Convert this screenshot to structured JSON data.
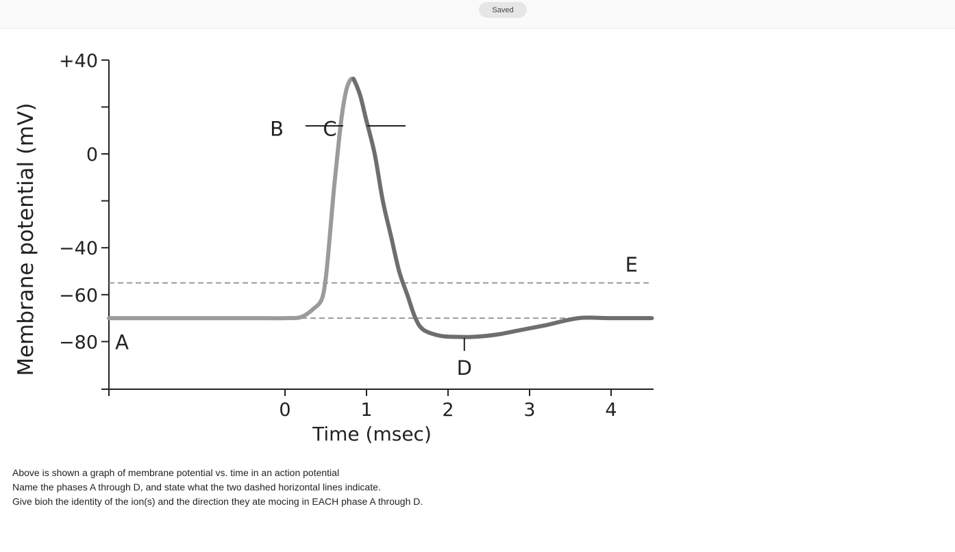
{
  "header": {
    "status": "Saved"
  },
  "chart_data": {
    "type": "line",
    "title": "",
    "xlabel": "Time (msec)",
    "ylabel": "Membrane potential (mV)",
    "xlim": [
      -2.16,
      4.5
    ],
    "ylim": [
      -99.6,
      40
    ],
    "x_tick_labels": [
      "0",
      "1",
      "2",
      "3",
      "4"
    ],
    "x_ticks": [
      0,
      1,
      2,
      3,
      4
    ],
    "y_tick_labels": [
      "+40",
      "0",
      "−40",
      "−60",
      "−80"
    ],
    "y_ticks": [
      40,
      0,
      -40,
      -60,
      -80
    ],
    "y_minor_ticks": [
      20,
      -20
    ],
    "grid": false,
    "series": [
      {
        "x": [
          -2.16,
          -1,
          -0.5,
          0,
          0.2,
          0.35,
          0.45,
          0.5,
          0.55,
          0.6,
          0.65,
          0.7,
          0.75,
          0.8,
          0.84,
          0.88,
          0.93,
          1.0,
          1.1,
          1.2,
          1.3,
          1.4,
          1.5,
          1.6,
          1.7,
          1.9,
          2.1,
          2.3,
          2.6,
          2.9,
          3.2,
          3.6,
          4.0,
          4.5
        ],
        "y": [
          -70,
          -70,
          -70,
          -70,
          -69.5,
          -66,
          -62,
          -53,
          -35,
          -15,
          2,
          17,
          27,
          31.5,
          32,
          29,
          24,
          14,
          0,
          -20,
          -35,
          -50,
          -60,
          -70,
          -75,
          -77.5,
          -78,
          -78,
          -77,
          -75,
          -73,
          -70,
          -70,
          -70
        ]
      }
    ],
    "reference_lines": [
      {
        "y": -55,
        "style": "dashed"
      },
      {
        "y": -70,
        "style": "dashed"
      }
    ],
    "annotations": [
      {
        "text": "A",
        "x": -2.0,
        "y": -80
      },
      {
        "text": "B",
        "x": -0.1,
        "y": 11
      },
      {
        "text": "C",
        "x": 0.55,
        "y": 11
      },
      {
        "text": "D",
        "x": 2.2,
        "y": -91
      },
      {
        "text": "E",
        "x": 4.25,
        "y": -47
      }
    ],
    "colors": {
      "rise": "#9b9b9b",
      "fall": "#6e6e6e",
      "dashed": "#999999",
      "axis": "#222222"
    }
  },
  "question": {
    "lines": [
      "Above is shown a graph of membrane potential vs. time in an action potential",
      "Name the phases A through D, and state what the two dashed horizontal lines indicate.",
      "Give bioh the identity of the ion(s) and the direction they ate mocing in EACH phase A through D."
    ]
  }
}
